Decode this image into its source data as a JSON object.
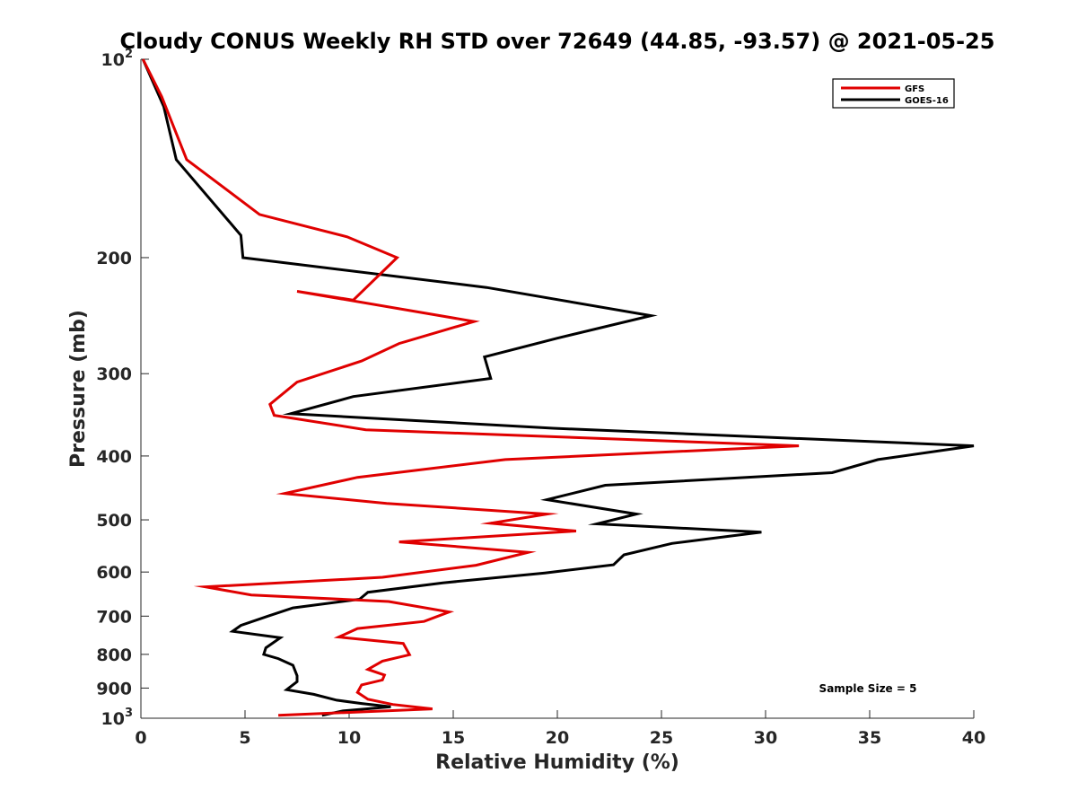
{
  "chart_data": {
    "type": "line",
    "title": "Cloudy CONUS Weekly RH STD over 72649 (44.85, -93.57) @ 2021-05-25",
    "xlabel": "Relative Humidity (%)",
    "ylabel": "Pressure (mb)",
    "xlim": [
      0,
      40
    ],
    "ylim": [
      100,
      1000
    ],
    "yscale": "log",
    "y_reversed": true,
    "grid": false,
    "legend_position": "top-right",
    "x_ticks": [
      "0",
      "5",
      "10",
      "15",
      "20",
      "25",
      "30",
      "35",
      "40"
    ],
    "y_ticks": [
      {
        "value": 100,
        "base": "10",
        "exp": "2"
      },
      {
        "value": 200,
        "label": "200"
      },
      {
        "value": 300,
        "label": "300"
      },
      {
        "value": 400,
        "label": "400"
      },
      {
        "value": 500,
        "label": "500"
      },
      {
        "value": 600,
        "label": "600"
      },
      {
        "value": 700,
        "label": "700"
      },
      {
        "value": 800,
        "label": "800"
      },
      {
        "value": 900,
        "label": "900"
      },
      {
        "value": 1000,
        "base": "10",
        "exp": "3"
      }
    ],
    "annotation": "Sample Size = 5",
    "series": [
      {
        "name": "GFS",
        "color": "#e00000",
        "x": [
          0.1,
          1.0,
          2.2,
          5.7,
          9.9,
          12.3,
          10.2,
          7.5,
          16.0,
          12.4,
          10.6,
          7.5,
          6.2,
          6.4,
          10.8,
          31.6,
          17.5,
          10.4,
          6.9,
          11.8,
          19.5,
          16.8,
          20.9,
          12.4,
          18.6,
          16.1,
          11.6,
          3.1,
          5.3,
          11.9,
          14.8,
          13.6,
          10.4,
          9.5,
          12.6,
          12.9,
          11.6,
          10.9,
          11.7,
          11.6,
          10.6,
          10.4,
          10.9,
          12.1,
          14.0,
          6.6
        ],
        "y": [
          100,
          114,
          142,
          172,
          186,
          200,
          232,
          225,
          250,
          270,
          287,
          309,
          334,
          347,
          365,
          386,
          405,
          431,
          456,
          472,
          490,
          506,
          520,
          540,
          560,
          586,
          611,
          632,
          650,
          665,
          690,
          713,
          731,
          753,
          770,
          801,
          819,
          843,
          860,
          875,
          890,
          914,
          936,
          953,
          968,
          990
        ]
      },
      {
        "name": "GOES-16",
        "color": "#000000",
        "x": [
          0.1,
          1.1,
          1.7,
          4.8,
          4.9,
          16.6,
          24.5,
          20.0,
          16.5,
          16.8,
          10.2,
          7.2,
          19.8,
          40.0,
          35.4,
          33.2,
          22.3,
          19.5,
          23.8,
          21.9,
          29.8,
          25.5,
          23.2,
          22.7,
          19.4,
          14.5,
          10.9,
          10.5,
          7.3,
          6.1,
          4.8,
          4.4,
          6.7,
          6.0,
          5.9,
          6.6,
          7.3,
          7.5,
          7.5,
          7.0,
          8.3,
          9.4,
          10.6,
          12.0,
          9.7,
          8.7
        ],
        "y": [
          100,
          118,
          142,
          185,
          200,
          222,
          245,
          265,
          283,
          305,
          325,
          345,
          363,
          386,
          405,
          424,
          443,
          466,
          490,
          507,
          522,
          543,
          565,
          585,
          602,
          623,
          644,
          660,
          680,
          700,
          723,
          738,
          755,
          782,
          800,
          812,
          831,
          862,
          880,
          905,
          920,
          939,
          950,
          961,
          975,
          990
        ]
      }
    ]
  }
}
